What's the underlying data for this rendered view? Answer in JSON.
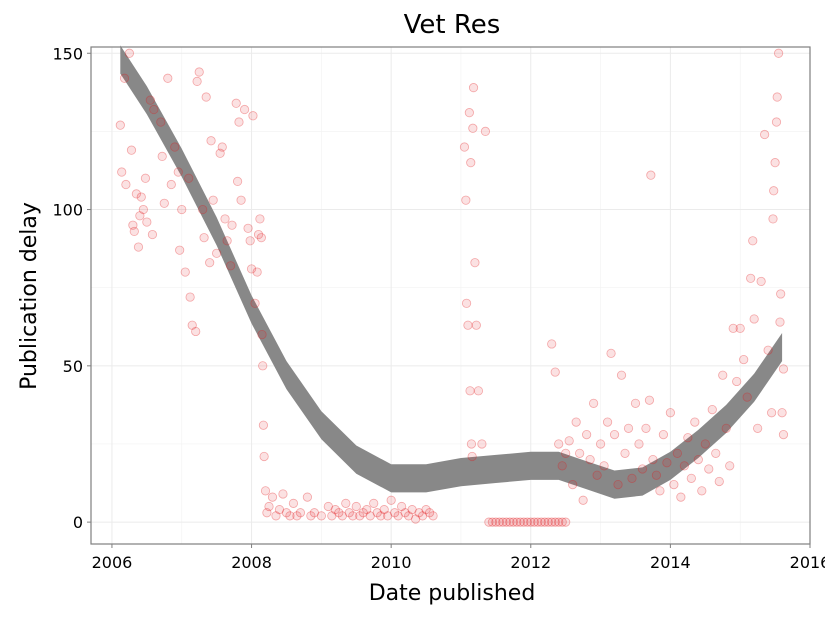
{
  "chart_data": {
    "type": "scatter",
    "title": "Vet Res",
    "xlabel": "Date published",
    "ylabel": "Publication delay",
    "xlim": [
      2005.7,
      2016.0
    ],
    "ylim": [
      -7,
      152
    ],
    "x_ticks": [
      2006,
      2008,
      2010,
      2012,
      2014,
      2016
    ],
    "y_ticks": [
      0,
      50,
      100,
      150
    ],
    "grid": true,
    "point_color": "#e31a1c",
    "smooth_color": "#888888",
    "points": [
      [
        2006.12,
        127
      ],
      [
        2006.14,
        112
      ],
      [
        2006.18,
        142
      ],
      [
        2006.2,
        108
      ],
      [
        2006.25,
        150
      ],
      [
        2006.28,
        119
      ],
      [
        2006.3,
        95
      ],
      [
        2006.32,
        93
      ],
      [
        2006.35,
        105
      ],
      [
        2006.38,
        88
      ],
      [
        2006.4,
        98
      ],
      [
        2006.42,
        104
      ],
      [
        2006.45,
        100
      ],
      [
        2006.48,
        110
      ],
      [
        2006.5,
        96
      ],
      [
        2006.55,
        135
      ],
      [
        2006.58,
        92
      ],
      [
        2006.6,
        132
      ],
      [
        2006.7,
        128
      ],
      [
        2006.72,
        117
      ],
      [
        2006.75,
        102
      ],
      [
        2006.8,
        142
      ],
      [
        2006.85,
        108
      ],
      [
        2006.9,
        120
      ],
      [
        2006.95,
        112
      ],
      [
        2006.97,
        87
      ],
      [
        2007.0,
        100
      ],
      [
        2007.05,
        80
      ],
      [
        2007.1,
        110
      ],
      [
        2007.12,
        72
      ],
      [
        2007.15,
        63
      ],
      [
        2007.2,
        61
      ],
      [
        2007.22,
        141
      ],
      [
        2007.25,
        144
      ],
      [
        2007.3,
        100
      ],
      [
        2007.32,
        91
      ],
      [
        2007.35,
        136
      ],
      [
        2007.4,
        83
      ],
      [
        2007.42,
        122
      ],
      [
        2007.45,
        103
      ],
      [
        2007.5,
        86
      ],
      [
        2007.55,
        118
      ],
      [
        2007.58,
        120
      ],
      [
        2007.62,
        97
      ],
      [
        2007.65,
        90
      ],
      [
        2007.7,
        82
      ],
      [
        2007.72,
        95
      ],
      [
        2007.78,
        134
      ],
      [
        2007.8,
        109
      ],
      [
        2007.82,
        128
      ],
      [
        2007.85,
        103
      ],
      [
        2007.9,
        132
      ],
      [
        2007.95,
        94
      ],
      [
        2007.98,
        90
      ],
      [
        2008.0,
        81
      ],
      [
        2008.02,
        130
      ],
      [
        2008.05,
        70
      ],
      [
        2008.08,
        80
      ],
      [
        2008.1,
        92
      ],
      [
        2008.12,
        97
      ],
      [
        2008.14,
        91
      ],
      [
        2008.15,
        60
      ],
      [
        2008.16,
        50
      ],
      [
        2008.17,
        31
      ],
      [
        2008.18,
        21
      ],
      [
        2008.2,
        10
      ],
      [
        2008.22,
        3
      ],
      [
        2008.25,
        5
      ],
      [
        2008.3,
        8
      ],
      [
        2008.35,
        2
      ],
      [
        2008.4,
        4
      ],
      [
        2008.45,
        9
      ],
      [
        2008.5,
        3
      ],
      [
        2008.55,
        2
      ],
      [
        2008.6,
        6
      ],
      [
        2008.65,
        2
      ],
      [
        2008.7,
        3
      ],
      [
        2008.8,
        8
      ],
      [
        2008.85,
        2
      ],
      [
        2008.9,
        3
      ],
      [
        2009.0,
        2
      ],
      [
        2009.1,
        5
      ],
      [
        2009.15,
        2
      ],
      [
        2009.2,
        4
      ],
      [
        2009.25,
        3
      ],
      [
        2009.3,
        2
      ],
      [
        2009.35,
        6
      ],
      [
        2009.4,
        3
      ],
      [
        2009.45,
        2
      ],
      [
        2009.5,
        5
      ],
      [
        2009.55,
        2
      ],
      [
        2009.6,
        3
      ],
      [
        2009.65,
        4
      ],
      [
        2009.7,
        2
      ],
      [
        2009.75,
        6
      ],
      [
        2009.8,
        3
      ],
      [
        2009.85,
        2
      ],
      [
        2009.9,
        4
      ],
      [
        2009.95,
        2
      ],
      [
        2010.0,
        7
      ],
      [
        2010.05,
        3
      ],
      [
        2010.1,
        2
      ],
      [
        2010.15,
        5
      ],
      [
        2010.2,
        3
      ],
      [
        2010.25,
        2
      ],
      [
        2010.3,
        4
      ],
      [
        2010.35,
        1
      ],
      [
        2010.4,
        3
      ],
      [
        2010.45,
        2
      ],
      [
        2010.5,
        4
      ],
      [
        2010.55,
        3
      ],
      [
        2010.6,
        2
      ],
      [
        2011.05,
        120
      ],
      [
        2011.07,
        103
      ],
      [
        2011.08,
        70
      ],
      [
        2011.1,
        63
      ],
      [
        2011.12,
        131
      ],
      [
        2011.13,
        42
      ],
      [
        2011.14,
        115
      ],
      [
        2011.15,
        25
      ],
      [
        2011.16,
        21
      ],
      [
        2011.17,
        126
      ],
      [
        2011.18,
        139
      ],
      [
        2011.2,
        83
      ],
      [
        2011.22,
        63
      ],
      [
        2011.25,
        42
      ],
      [
        2011.3,
        25
      ],
      [
        2011.35,
        125
      ],
      [
        2011.4,
        0
      ],
      [
        2011.45,
        0
      ],
      [
        2011.5,
        0
      ],
      [
        2011.55,
        0
      ],
      [
        2011.6,
        0
      ],
      [
        2011.65,
        0
      ],
      [
        2011.7,
        0
      ],
      [
        2011.75,
        0
      ],
      [
        2011.8,
        0
      ],
      [
        2011.85,
        0
      ],
      [
        2011.9,
        0
      ],
      [
        2011.95,
        0
      ],
      [
        2012.0,
        0
      ],
      [
        2012.05,
        0
      ],
      [
        2012.1,
        0
      ],
      [
        2012.15,
        0
      ],
      [
        2012.2,
        0
      ],
      [
        2012.25,
        0
      ],
      [
        2012.3,
        0
      ],
      [
        2012.35,
        0
      ],
      [
        2012.4,
        0
      ],
      [
        2012.45,
        0
      ],
      [
        2012.5,
        0
      ],
      [
        2012.3,
        57
      ],
      [
        2012.35,
        48
      ],
      [
        2012.4,
        25
      ],
      [
        2012.45,
        18
      ],
      [
        2012.5,
        22
      ],
      [
        2012.55,
        26
      ],
      [
        2012.6,
        12
      ],
      [
        2012.65,
        32
      ],
      [
        2012.7,
        22
      ],
      [
        2012.75,
        7
      ],
      [
        2012.8,
        28
      ],
      [
        2012.85,
        20
      ],
      [
        2012.9,
        38
      ],
      [
        2012.95,
        15
      ],
      [
        2013.0,
        25
      ],
      [
        2013.05,
        18
      ],
      [
        2013.1,
        32
      ],
      [
        2013.15,
        54
      ],
      [
        2013.2,
        28
      ],
      [
        2013.25,
        12
      ],
      [
        2013.3,
        47
      ],
      [
        2013.35,
        22
      ],
      [
        2013.4,
        30
      ],
      [
        2013.45,
        14
      ],
      [
        2013.5,
        38
      ],
      [
        2013.55,
        25
      ],
      [
        2013.6,
        17
      ],
      [
        2013.65,
        30
      ],
      [
        2013.7,
        39
      ],
      [
        2013.72,
        111
      ],
      [
        2013.75,
        20
      ],
      [
        2013.8,
        15
      ],
      [
        2013.85,
        10
      ],
      [
        2013.9,
        28
      ],
      [
        2013.95,
        19
      ],
      [
        2014.0,
        35
      ],
      [
        2014.05,
        12
      ],
      [
        2014.1,
        22
      ],
      [
        2014.15,
        8
      ],
      [
        2014.2,
        18
      ],
      [
        2014.25,
        27
      ],
      [
        2014.3,
        14
      ],
      [
        2014.35,
        32
      ],
      [
        2014.4,
        20
      ],
      [
        2014.45,
        10
      ],
      [
        2014.5,
        25
      ],
      [
        2014.55,
        17
      ],
      [
        2014.6,
        36
      ],
      [
        2014.65,
        22
      ],
      [
        2014.7,
        13
      ],
      [
        2014.75,
        47
      ],
      [
        2014.8,
        30
      ],
      [
        2014.85,
        18
      ],
      [
        2014.9,
        62
      ],
      [
        2014.95,
        45
      ],
      [
        2015.0,
        62
      ],
      [
        2015.05,
        52
      ],
      [
        2015.1,
        40
      ],
      [
        2015.15,
        78
      ],
      [
        2015.18,
        90
      ],
      [
        2015.2,
        65
      ],
      [
        2015.25,
        30
      ],
      [
        2015.3,
        77
      ],
      [
        2015.35,
        124
      ],
      [
        2015.4,
        55
      ],
      [
        2015.45,
        35
      ],
      [
        2015.47,
        97
      ],
      [
        2015.48,
        106
      ],
      [
        2015.5,
        115
      ],
      [
        2015.52,
        128
      ],
      [
        2015.53,
        136
      ],
      [
        2015.55,
        150
      ],
      [
        2015.57,
        64
      ],
      [
        2015.58,
        73
      ],
      [
        2015.6,
        35
      ],
      [
        2015.62,
        28
      ],
      [
        2015.62,
        49
      ]
    ],
    "smooth": [
      [
        2006.12,
        148
      ],
      [
        2006.5,
        135
      ],
      [
        2007.0,
        115
      ],
      [
        2007.5,
        93
      ],
      [
        2008.0,
        68
      ],
      [
        2008.5,
        47
      ],
      [
        2009.0,
        31
      ],
      [
        2009.5,
        20
      ],
      [
        2010.0,
        14
      ],
      [
        2010.5,
        14
      ],
      [
        2011.0,
        16
      ],
      [
        2011.5,
        17
      ],
      [
        2012.0,
        18
      ],
      [
        2012.4,
        18
      ],
      [
        2012.8,
        15
      ],
      [
        2013.2,
        12
      ],
      [
        2013.6,
        13
      ],
      [
        2014.0,
        18
      ],
      [
        2014.4,
        25
      ],
      [
        2014.8,
        33
      ],
      [
        2015.2,
        43
      ],
      [
        2015.6,
        56
      ]
    ],
    "smooth_band": 4.5
  }
}
